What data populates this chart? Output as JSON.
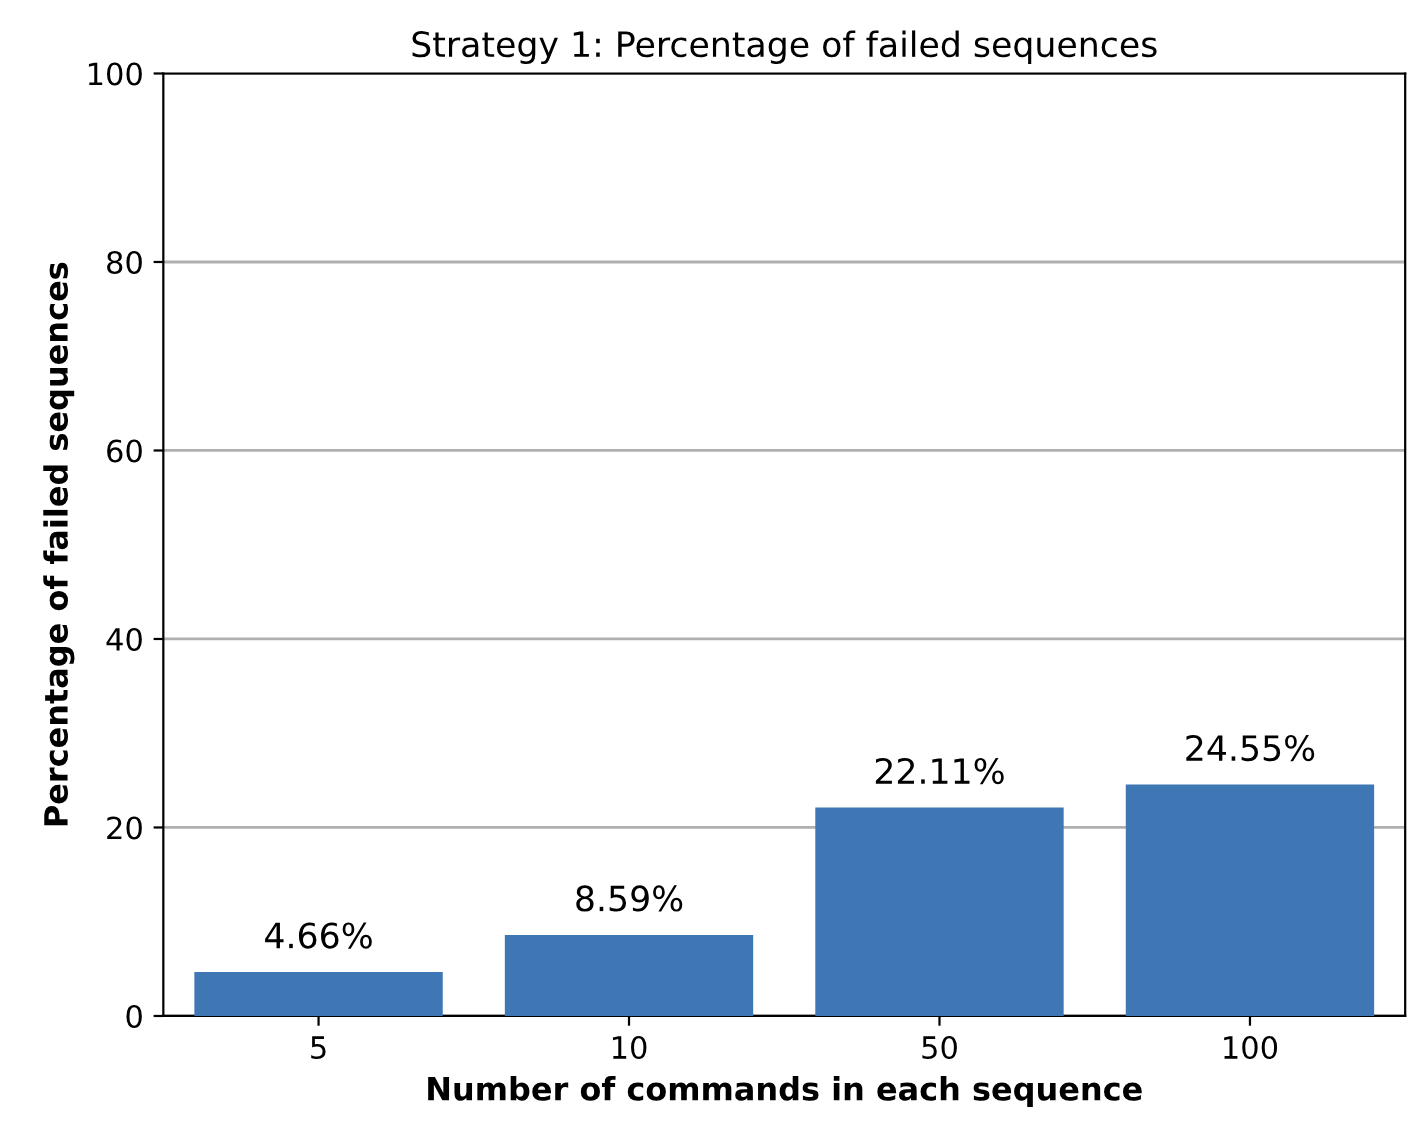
{
  "chart_data": {
    "type": "bar",
    "title": "Strategy 1: Percentage of failed sequences",
    "xlabel": "Number of commands in each sequence",
    "ylabel": "Percentage of failed sequences",
    "categories": [
      "5",
      "10",
      "50",
      "100"
    ],
    "values": [
      4.66,
      8.59,
      22.11,
      24.55
    ],
    "value_labels": [
      "4.66%",
      "8.59%",
      "22.11%",
      "24.55%"
    ],
    "color": "#3f77b4",
    "ylim": [
      0,
      100
    ],
    "yticks": [
      0,
      20,
      40,
      60,
      80,
      100
    ],
    "grid": "y",
    "legend": false
  }
}
